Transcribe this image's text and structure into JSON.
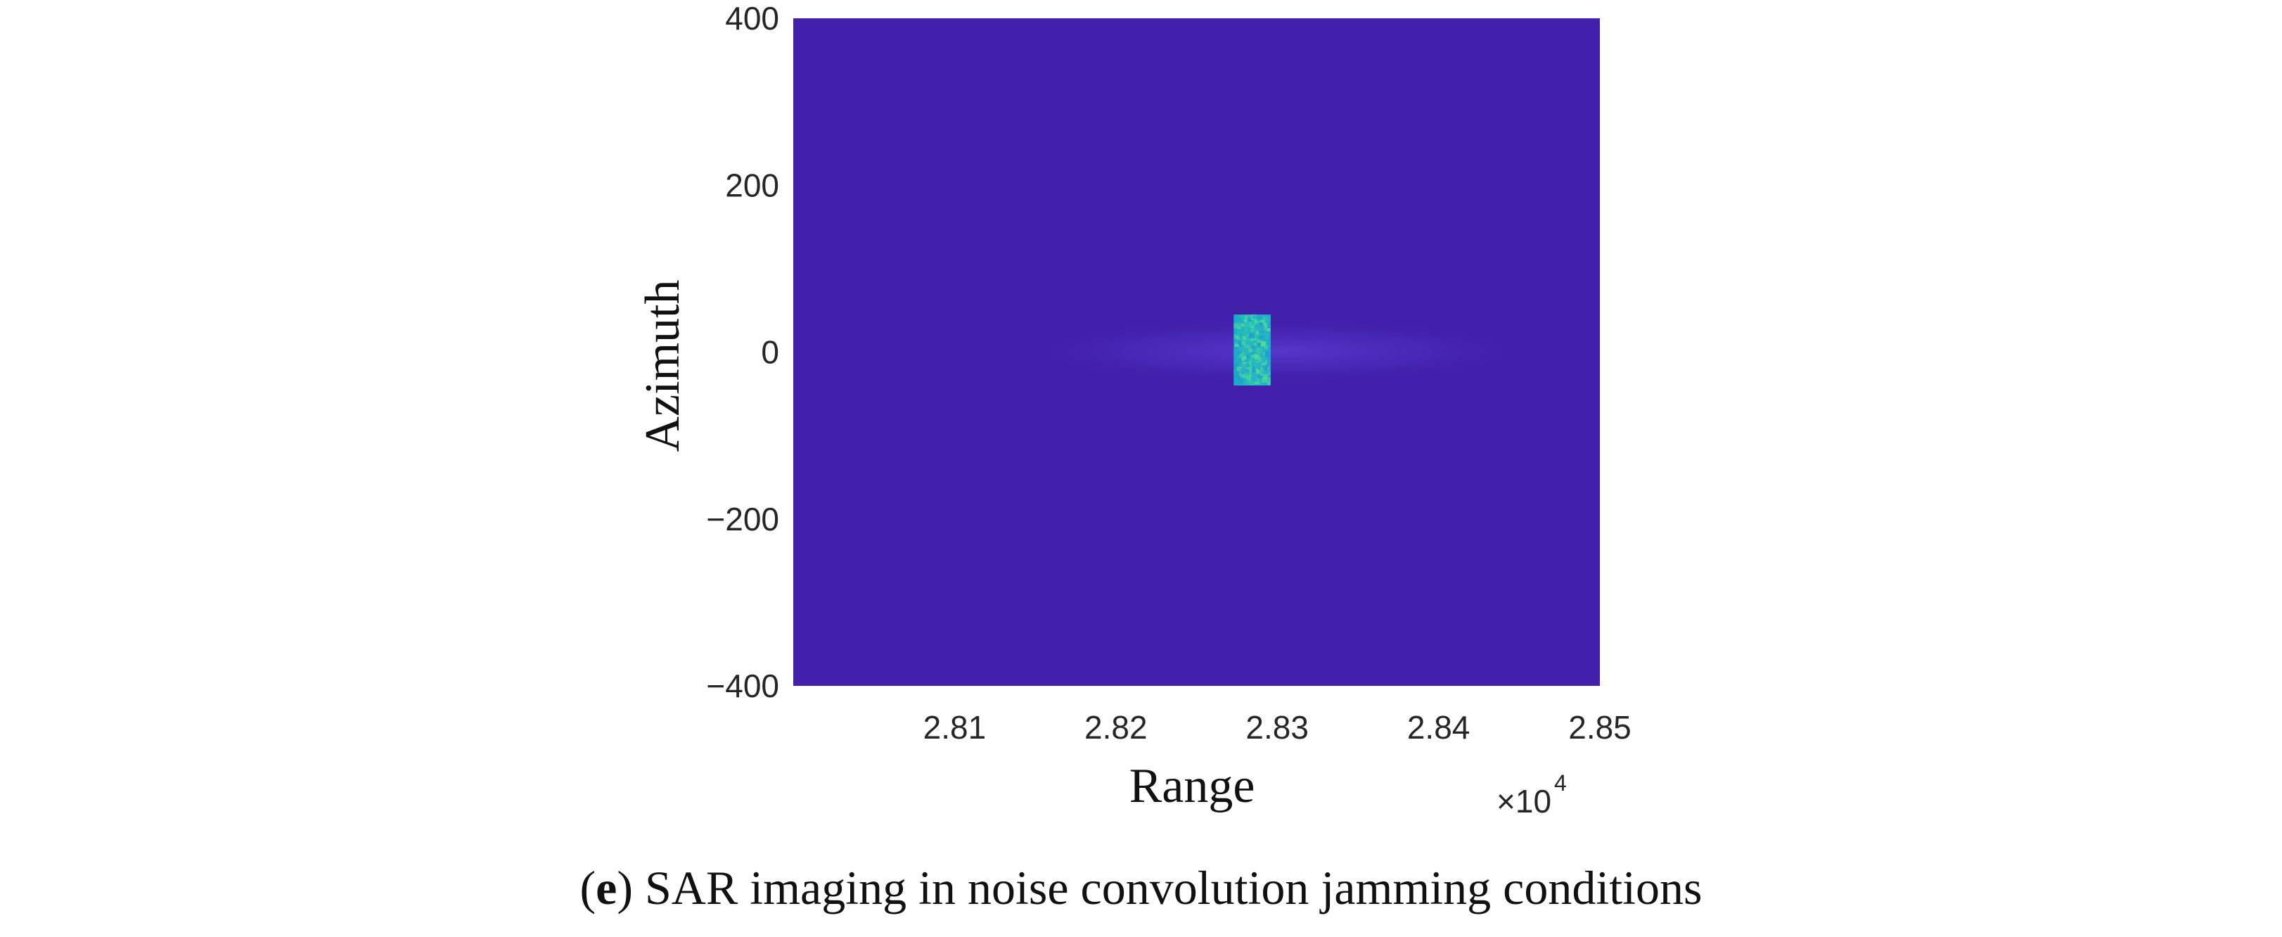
{
  "chart_data": {
    "type": "heatmap",
    "xlabel": "Range",
    "ylabel": "Azimuth",
    "x_exponent_base": "×10",
    "x_exponent_power": "4",
    "xlim": [
      2.8,
      2.85
    ],
    "ylim": [
      -400,
      400
    ],
    "xticks": [
      2.81,
      2.82,
      2.83,
      2.84,
      2.85
    ],
    "xtick_labels": [
      "2.81",
      "2.82",
      "2.83",
      "2.84",
      "2.85"
    ],
    "yticks": [
      400,
      200,
      0,
      -200,
      -400
    ],
    "ytick_labels": [
      "400",
      "200",
      "0",
      "−200",
      "−400"
    ],
    "grid": false,
    "colors": {
      "background": "#4220ab",
      "target_core": "#1fb9c0",
      "target_high": "#52d89a",
      "sidelobe": "#4a2dc0"
    },
    "target": {
      "x_range": [
        2.8273,
        2.8296
      ],
      "y_range": [
        -40,
        45
      ]
    },
    "sidelobes": {
      "x_range": [
        2.814,
        2.846
      ],
      "y_range": [
        -12,
        14
      ]
    }
  },
  "caption": {
    "letter": "e",
    "text": "SAR imaging in noise convolution jamming conditions"
  }
}
